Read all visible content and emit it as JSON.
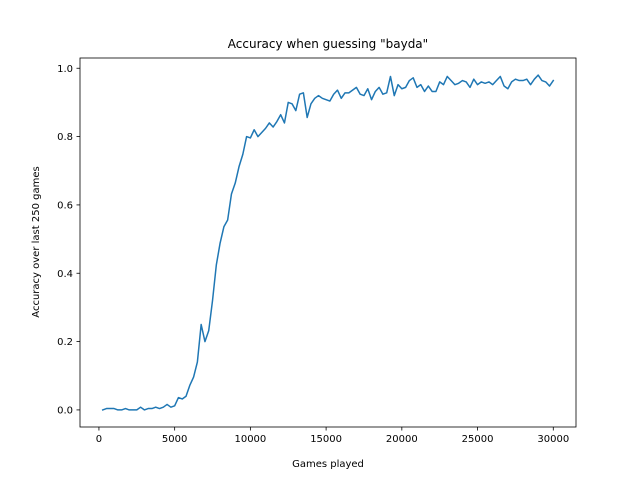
{
  "chart_data": {
    "type": "line",
    "title": "Accuracy when guessing \"bayda\"",
    "xlabel": "Games played",
    "ylabel": "Accuracy over last 250 games",
    "xlim": [
      -1250,
      31500
    ],
    "ylim": [
      -0.05,
      1.03
    ],
    "xticks": [
      0,
      5000,
      10000,
      15000,
      20000,
      25000,
      30000
    ],
    "xtick_labels": [
      "0",
      "5000",
      "10000",
      "15000",
      "20000",
      "25000",
      "30000"
    ],
    "yticks": [
      0.0,
      0.2,
      0.4,
      0.6,
      0.8,
      1.0
    ],
    "ytick_labels": [
      "0.0",
      "0.2",
      "0.4",
      "0.6",
      "0.8",
      "1.0"
    ],
    "grid": false,
    "series": [
      {
        "color": "#1f77b4",
        "x": [
          250,
          500,
          750,
          1000,
          1250,
          1500,
          1750,
          2000,
          2250,
          2500,
          2750,
          3000,
          3250,
          3500,
          3750,
          4000,
          4250,
          4500,
          4750,
          5000,
          5250,
          5500,
          5750,
          6000,
          6250,
          6500,
          6750,
          7000,
          7250,
          7500,
          7750,
          8000,
          8250,
          8500,
          8750,
          9000,
          9250,
          9500,
          9750,
          10000,
          10250,
          10500,
          10750,
          11000,
          11250,
          11500,
          11750,
          12000,
          12250,
          12500,
          12750,
          13000,
          13250,
          13500,
          13750,
          14000,
          14250,
          14500,
          14750,
          15000,
          15250,
          15500,
          15750,
          16000,
          16250,
          16500,
          16750,
          17000,
          17250,
          17500,
          17750,
          18000,
          18250,
          18500,
          18750,
          19000,
          19250,
          19500,
          19750,
          20000,
          20250,
          20500,
          20750,
          21000,
          21250,
          21500,
          21750,
          22000,
          22250,
          22500,
          22750,
          23000,
          23250,
          23500,
          23750,
          24000,
          24250,
          24500,
          24750,
          25000,
          25250,
          25500,
          25750,
          26000,
          26250,
          26500,
          26750,
          27000,
          27250,
          27500,
          27750,
          28000,
          28250,
          28500,
          28750,
          29000,
          29250,
          29500,
          29750,
          30000
        ],
        "y": [
          0.0,
          0.004,
          0.004,
          0.004,
          0.0,
          0.0,
          0.004,
          0.0,
          0.0,
          0.0,
          0.008,
          0.0,
          0.004,
          0.004,
          0.008,
          0.004,
          0.008,
          0.016,
          0.008,
          0.012,
          0.036,
          0.032,
          0.04,
          0.072,
          0.096,
          0.14,
          0.25,
          0.2,
          0.232,
          0.32,
          0.424,
          0.488,
          0.536,
          0.556,
          0.632,
          0.664,
          0.712,
          0.748,
          0.8,
          0.796,
          0.82,
          0.8,
          0.812,
          0.824,
          0.84,
          0.828,
          0.844,
          0.864,
          0.84,
          0.9,
          0.896,
          0.876,
          0.924,
          0.928,
          0.856,
          0.896,
          0.912,
          0.92,
          0.912,
          0.908,
          0.904,
          0.924,
          0.936,
          0.912,
          0.928,
          0.928,
          0.936,
          0.944,
          0.924,
          0.92,
          0.94,
          0.908,
          0.932,
          0.944,
          0.924,
          0.928,
          0.976,
          0.92,
          0.952,
          0.94,
          0.944,
          0.964,
          0.972,
          0.944,
          0.952,
          0.932,
          0.948,
          0.932,
          0.932,
          0.96,
          0.952,
          0.976,
          0.964,
          0.952,
          0.956,
          0.964,
          0.96,
          0.944,
          0.968,
          0.952,
          0.96,
          0.956,
          0.96,
          0.952,
          0.964,
          0.976,
          0.948,
          0.94,
          0.96,
          0.968,
          0.964,
          0.964,
          0.968,
          0.952,
          0.968,
          0.98,
          0.964,
          0.96,
          0.948,
          0.964
        ]
      }
    ]
  }
}
